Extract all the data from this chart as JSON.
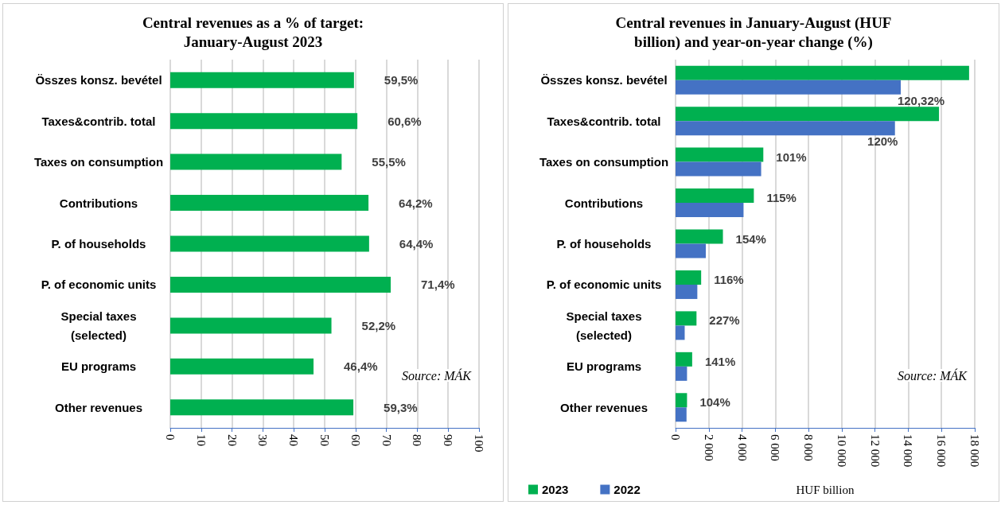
{
  "chart_data": [
    {
      "type": "bar",
      "orientation": "horizontal",
      "title": "Central revenues as a % of target:\nJanuary-August 2023",
      "categories": [
        "Összes konsz. bevétel",
        "Taxes&contrib. total",
        "Taxes on consumption",
        "Contributions",
        "P. of households",
        "P. of economic units",
        "Special taxes\n(selected)",
        "EU programs",
        "Other revenues"
      ],
      "values": [
        59.5,
        60.6,
        55.5,
        64.2,
        64.4,
        71.4,
        52.2,
        46.4,
        59.3
      ],
      "value_labels": [
        "59,5%",
        "60,6%",
        "55,5%",
        "64,2%",
        "64,4%",
        "71,4%",
        "52,2%",
        "46,4%",
        "59,3%"
      ],
      "color": "#00b050",
      "xlim": [
        0,
        100
      ],
      "xticks": [
        0,
        10,
        20,
        30,
        40,
        50,
        60,
        70,
        80,
        90,
        100
      ],
      "grid": "x",
      "legend": false,
      "annotations": [
        "Source: MÁK"
      ]
    },
    {
      "type": "bar",
      "orientation": "horizontal",
      "title": "Central revenues in January-August (HUF\nbillion) and year-on-year change (%)",
      "xlabel": "HUF billion",
      "categories": [
        "Összes konsz. bevétel",
        "Taxes&contrib. total",
        "Taxes on consumption",
        "Contributions",
        "P. of households",
        "P. of economic units",
        "Special taxes\n(selected)",
        "EU programs",
        "Other revenues"
      ],
      "series": [
        {
          "name": "2023",
          "color": "#00b050",
          "values": [
            17660,
            15850,
            5280,
            4710,
            2850,
            1540,
            1260,
            1000,
            690
          ]
        },
        {
          "name": "2022",
          "color": "#4472c4",
          "values": [
            13550,
            13200,
            5150,
            4090,
            1820,
            1310,
            550,
            690,
            660
          ]
        }
      ],
      "xlim": [
        0,
        18000
      ],
      "xticks": [
        0,
        {
          "value": 2000,
          "label": "2 000"
        },
        {
          "value": 4000,
          "label": "4 000"
        },
        {
          "value": 6000,
          "label": "6 000"
        },
        {
          "value": 8000,
          "label": "8 000"
        },
        {
          "value": 10000,
          "label": "10 000"
        },
        {
          "value": 12000,
          "label": "12 000"
        },
        {
          "value": 14000,
          "label": "14 000"
        },
        {
          "value": 16000,
          "label": "16 000"
        },
        {
          "value": 18000,
          "label": "18 000"
        }
      ],
      "grid": "x",
      "legend": "bottom left",
      "annotations": [
        "Source: MÁK",
        "120,32%",
        "120%",
        "101%",
        "115%",
        "154%",
        "116%",
        "227%",
        "141%",
        "104%"
      ]
    }
  ]
}
